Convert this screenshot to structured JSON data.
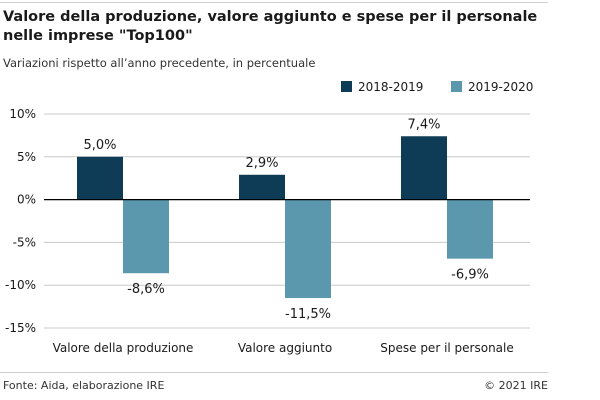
{
  "header": {
    "title": "Valore della produzione, valore aggiunto e spese per il personale nelle imprese \"Top100\"",
    "subtitle": "Variazioni rispetto all’anno precedente, in percentuale"
  },
  "footer": {
    "source": "Fonte: Aida, elaborazione IRE",
    "copyright": "© 2021 IRE"
  },
  "colors": {
    "series1": "#0e3b55",
    "series2": "#5b97ad",
    "gridline": "#c8c8c8",
    "zero_line": "#000000"
  },
  "chart_data": {
    "type": "bar",
    "title": "Valore della produzione, valore aggiunto e spese per il personale nelle imprese \"Top100\"",
    "subtitle": "Variazioni rispetto all’anno precedente, in percentuale",
    "categories": [
      "Valore della produzione",
      "Valore aggiunto",
      "Spese per il personale"
    ],
    "series": [
      {
        "name": "2018-2019",
        "values": [
          5.0,
          2.9,
          7.4
        ],
        "labels": [
          "5,0%",
          "2,9%",
          "7,4%"
        ],
        "color": "#0e3b55"
      },
      {
        "name": "2019-2020",
        "values": [
          -8.6,
          -11.5,
          -6.9
        ],
        "labels": [
          "-8,6%",
          "-11,5%",
          "-6,9%"
        ],
        "color": "#5b97ad"
      }
    ],
    "ylim": [
      -15,
      10
    ],
    "yticks": [
      10,
      5,
      0,
      -5,
      -10,
      -15
    ],
    "ytick_labels": [
      "10%",
      "5%",
      "0%",
      "-5%",
      "-10%",
      "-15%"
    ],
    "xlabel": "",
    "ylabel": "",
    "legend_position": "top-right",
    "grid": true
  }
}
